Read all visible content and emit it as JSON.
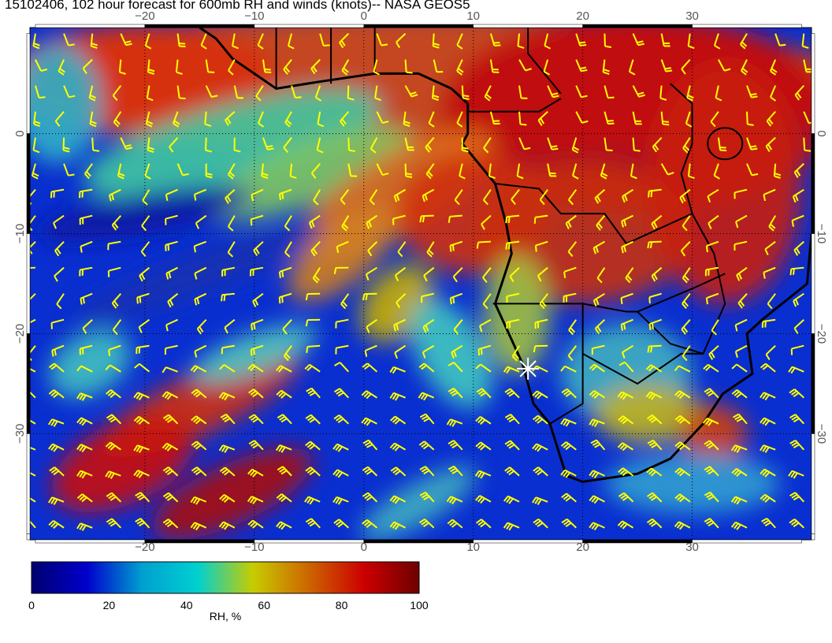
{
  "title": "15102406, 102 hour forecast for 600mb RH and winds (knots)-- NASA GEOS5",
  "map": {
    "lon_range": [
      -30.5,
      40.9
    ],
    "lat_range": [
      -40.6,
      10.6
    ],
    "lon_ticks": [
      "−20",
      "−10",
      "0",
      "10",
      "20",
      "30"
    ],
    "lon_tick_values": [
      -20,
      -10,
      0,
      10,
      20,
      30
    ],
    "lat_ticks": [
      "0",
      "−10",
      "−20",
      "−30"
    ],
    "lat_tick_values": [
      0,
      -10,
      -20,
      -30
    ],
    "gridlines": "dotted",
    "wind_barb_color": "#ffff00",
    "marker": {
      "icon": "white-star-marker",
      "lon": 15,
      "lat": -23.5,
      "color": "#ffffff"
    }
  },
  "colorbar": {
    "label": "RH, %",
    "ticks": [
      "0",
      "20",
      "40",
      "60",
      "80",
      "100"
    ],
    "range": [
      0,
      100
    ],
    "colors": [
      "#00006e",
      "#0000cc",
      "#00a0d0",
      "#00d0d0",
      "#c8cc00",
      "#cc6600",
      "#cc0000",
      "#6e0000"
    ]
  }
}
